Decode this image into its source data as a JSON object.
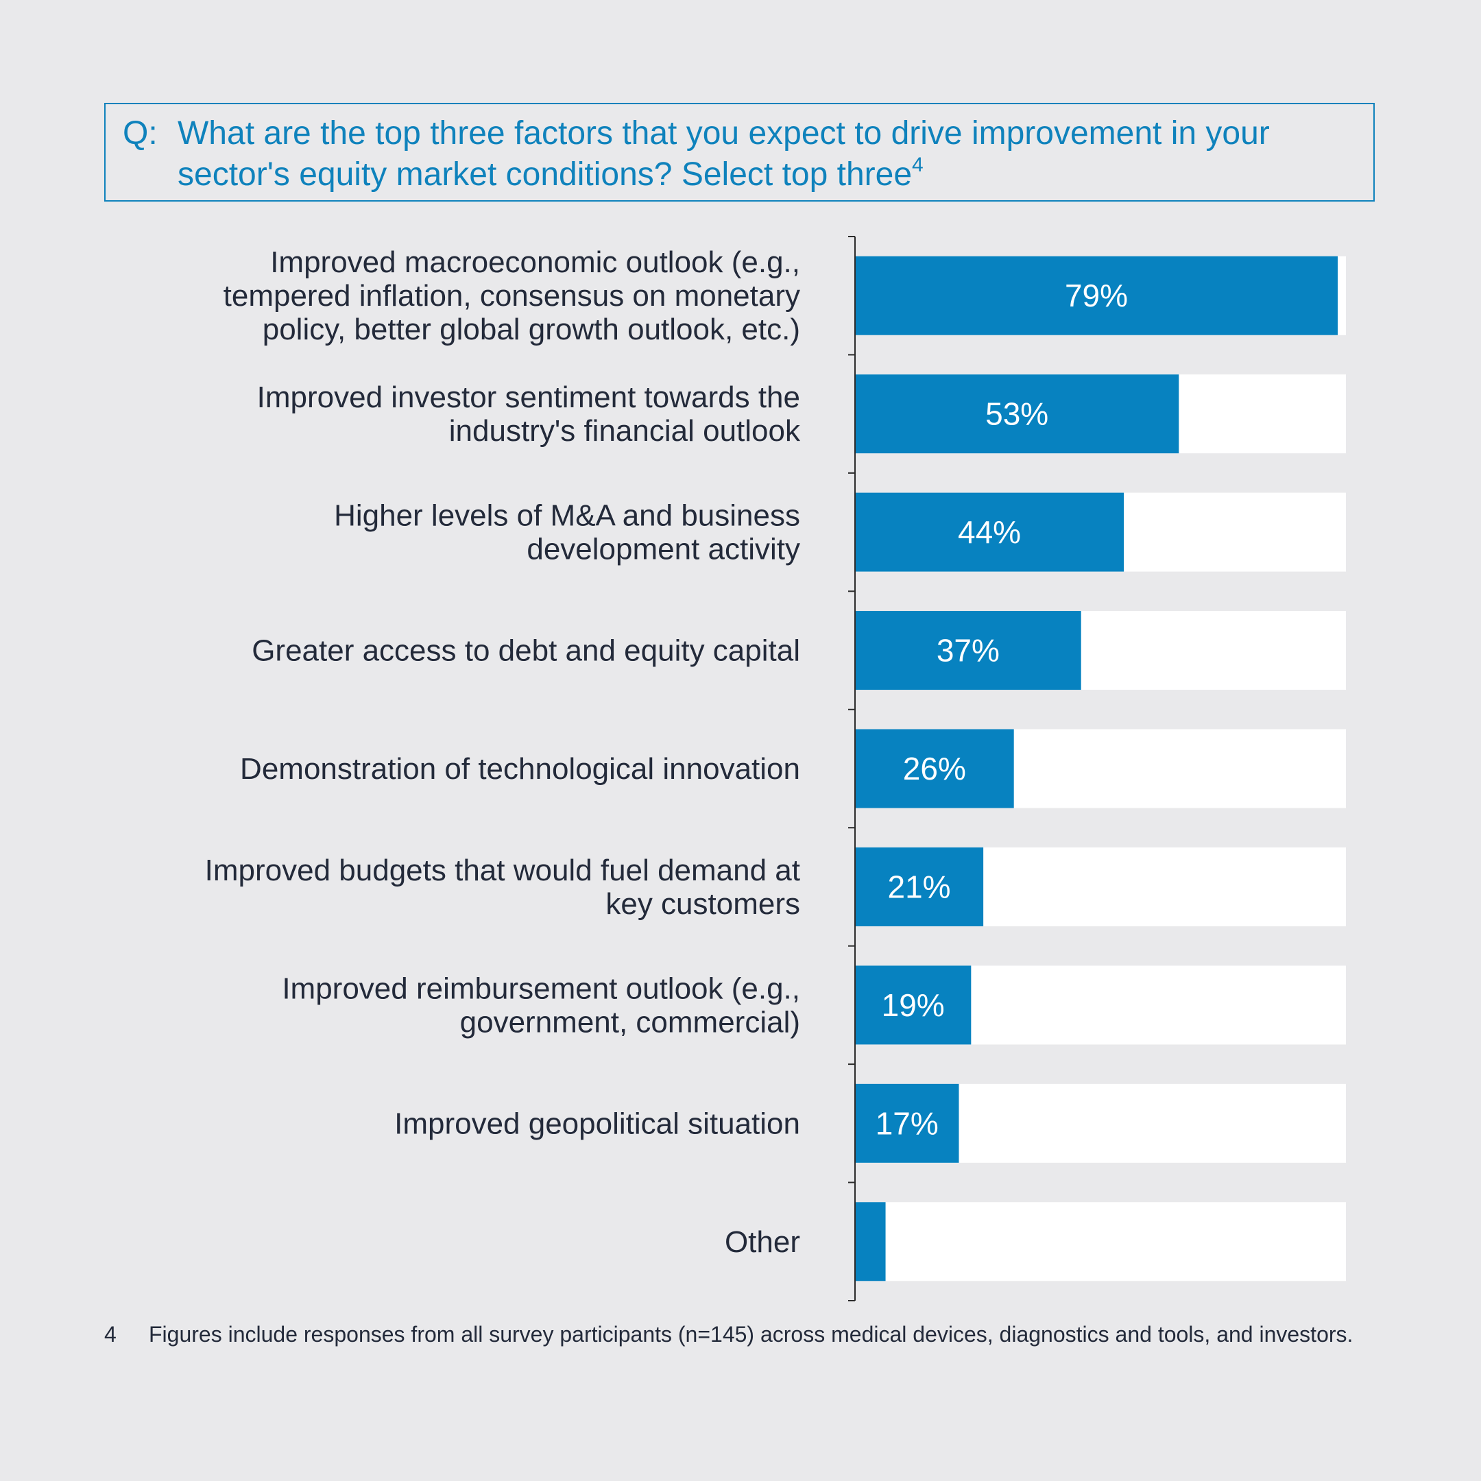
{
  "question": {
    "prefix": "Q:",
    "text": "What are the top three factors that you expect to drive improvement in your sector's equity market conditions? Select top three",
    "footnote_ref": "4"
  },
  "colors": {
    "accent": "#0782c0",
    "track": "#ffffff",
    "text": "#232a3a",
    "background": "#e9e9eb"
  },
  "chart_data": {
    "type": "bar",
    "orientation": "horizontal",
    "xlim": [
      0,
      100
    ],
    "grid": false,
    "legend": "none",
    "categories": [
      [
        "Improved macroeconomic outlook (e.g.,",
        "tempered inflation, consensus on monetary",
        "policy, better global growth outlook, etc.)"
      ],
      [
        "Improved investor sentiment towards the",
        "industry's financial outlook"
      ],
      [
        "Higher levels of M&A and business",
        "development activity"
      ],
      [
        "Greater access to debt and equity capital"
      ],
      [
        "Demonstration of technological innovation"
      ],
      [
        "Improved budgets that would fuel demand at",
        "key customers"
      ],
      [
        "Improved reimbursement outlook (e.g.,",
        "government, commercial)"
      ],
      [
        "Improved geopolitical situation"
      ],
      [
        "Other"
      ]
    ],
    "values": [
      79,
      53,
      44,
      37,
      26,
      21,
      19,
      17,
      5
    ],
    "value_labels": [
      "79%",
      "53%",
      "44%",
      "37%",
      "26%",
      "21%",
      "19%",
      "17%",
      ""
    ]
  },
  "footnote": {
    "number": "4",
    "text": "Figures include responses from all survey participants (n=145) across medical devices, diagnostics and tools, and investors."
  }
}
